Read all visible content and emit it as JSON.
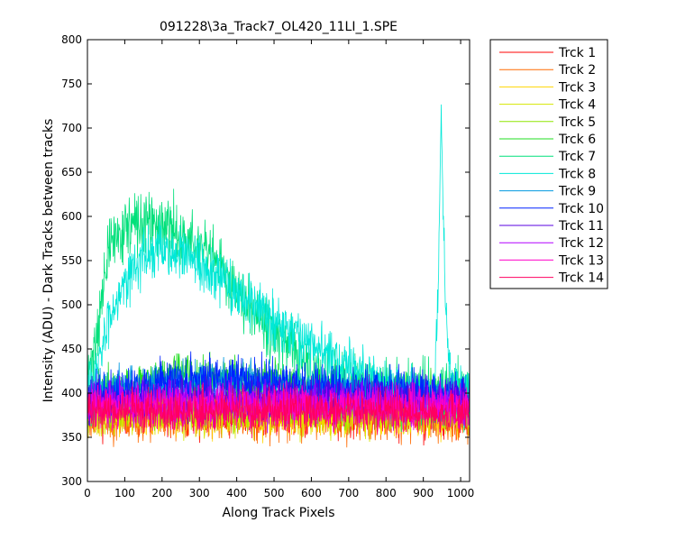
{
  "chart_data": {
    "type": "line",
    "title": "091228\\3a_Track7_OL420_11LI_1.SPE",
    "xlabel": "Along Track Pixels",
    "ylabel": "Intensity (ADU) - Dark Tracks between tracks",
    "xlim": [
      0,
      1024
    ],
    "ylim": [
      300,
      800
    ],
    "xticks": [
      0,
      100,
      200,
      300,
      400,
      500,
      600,
      700,
      800,
      900,
      1000
    ],
    "yticks": [
      300,
      350,
      400,
      450,
      500,
      550,
      600,
      650,
      700,
      750,
      800
    ],
    "grid": false,
    "legend_position": "outside-right",
    "x_start": 1,
    "x_end": 1024,
    "series": [
      {
        "name": "Trck 1",
        "color": "#ff0000",
        "profile": [
          [
            0,
            380
          ],
          [
            1024,
            378
          ]
        ],
        "noise": 24,
        "seed": 11
      },
      {
        "name": "Trck 2",
        "color": "#ff6a00",
        "profile": [
          [
            0,
            372
          ],
          [
            1024,
            372
          ]
        ],
        "noise": 22,
        "seed": 23
      },
      {
        "name": "Trck 3",
        "color": "#ffd400",
        "profile": [
          [
            0,
            375
          ],
          [
            1024,
            374
          ]
        ],
        "noise": 20,
        "seed": 37
      },
      {
        "name": "Trck 4",
        "color": "#d6e600",
        "profile": [
          [
            0,
            376
          ],
          [
            1024,
            375
          ]
        ],
        "noise": 20,
        "seed": 41
      },
      {
        "name": "Trck 5",
        "color": "#8ee600",
        "profile": [
          [
            0,
            385
          ],
          [
            1024,
            384
          ]
        ],
        "noise": 20,
        "seed": 53
      },
      {
        "name": "Trck 6",
        "color": "#22dd22",
        "profile": [
          [
            0,
            395
          ],
          [
            200,
            418
          ],
          [
            300,
            420
          ],
          [
            700,
            402
          ],
          [
            1024,
            395
          ]
        ],
        "noise": 22,
        "seed": 67
      },
      {
        "name": "Trck 7",
        "color": "#00e07a",
        "profile": [
          [
            0,
            410
          ],
          [
            30,
            480
          ],
          [
            60,
            570
          ],
          [
            110,
            590
          ],
          [
            200,
            590
          ],
          [
            300,
            565
          ],
          [
            400,
            520
          ],
          [
            500,
            470
          ],
          [
            560,
            440
          ],
          [
            600,
            418
          ],
          [
            700,
            405
          ],
          [
            1024,
            400
          ]
        ],
        "noise": 30,
        "seed": 71
      },
      {
        "name": "Trck 8",
        "color": "#00e8d8",
        "profile": [
          [
            0,
            400
          ],
          [
            30,
            430
          ],
          [
            60,
            490
          ],
          [
            100,
            530
          ],
          [
            150,
            555
          ],
          [
            200,
            562
          ],
          [
            250,
            555
          ],
          [
            300,
            545
          ],
          [
            400,
            515
          ],
          [
            500,
            485
          ],
          [
            600,
            455
          ],
          [
            700,
            432
          ],
          [
            800,
            410
          ],
          [
            880,
            395
          ],
          [
            930,
            395
          ],
          [
            940,
            520
          ],
          [
            945,
            650
          ],
          [
            948,
            715
          ],
          [
            952,
            640
          ],
          [
            958,
            520
          ],
          [
            968,
            430
          ],
          [
            980,
            405
          ],
          [
            1024,
            400
          ]
        ],
        "noise": 26,
        "seed": 83
      },
      {
        "name": "Trck 9",
        "color": "#0098e0",
        "profile": [
          [
            0,
            395
          ],
          [
            200,
            412
          ],
          [
            400,
            415
          ],
          [
            600,
            405
          ],
          [
            1024,
            398
          ]
        ],
        "noise": 20,
        "seed": 97
      },
      {
        "name": "Trck 10",
        "color": "#0022ff",
        "profile": [
          [
            0,
            395
          ],
          [
            200,
            412
          ],
          [
            400,
            418
          ],
          [
            600,
            408
          ],
          [
            1024,
            398
          ]
        ],
        "noise": 22,
        "seed": 101
      },
      {
        "name": "Trck 11",
        "color": "#5a00e0",
        "profile": [
          [
            0,
            392
          ],
          [
            500,
            395
          ],
          [
            1024,
            392
          ]
        ],
        "noise": 20,
        "seed": 113
      },
      {
        "name": "Trck 12",
        "color": "#b400ff",
        "profile": [
          [
            0,
            390
          ],
          [
            1024,
            388
          ]
        ],
        "noise": 20,
        "seed": 127
      },
      {
        "name": "Trck 13",
        "color": "#ff00c8",
        "profile": [
          [
            0,
            385
          ],
          [
            1024,
            383
          ]
        ],
        "noise": 20,
        "seed": 131
      },
      {
        "name": "Trck 14",
        "color": "#ff0060",
        "profile": [
          [
            0,
            380
          ],
          [
            1024,
            378
          ]
        ],
        "noise": 20,
        "seed": 139
      }
    ]
  }
}
